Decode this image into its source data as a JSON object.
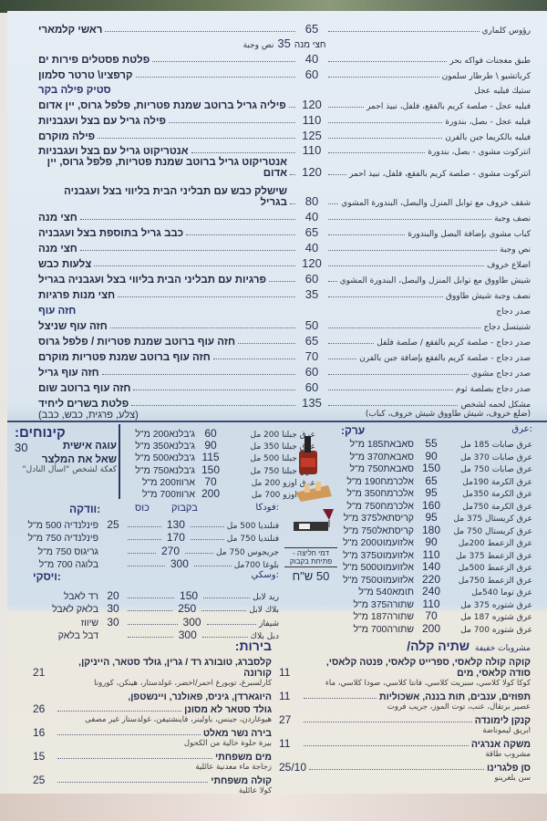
{
  "top_menu": {
    "block1": [
      {
        "he": "ראשי קלמארי",
        "price": "65",
        "ar": "رؤوس كلماري"
      },
      {
        "type": "half",
        "he": "חצי מנה",
        "price": "35",
        "ar": "نص وجبة"
      },
      {
        "he": "פלטת פסטלים פירות ים",
        "price": "40",
        "ar": "طبق معجنات فواكه بحر"
      },
      {
        "he": "קרפציו\\ טרטר סלמון",
        "price": "60",
        "ar": "كرباتشيو \\ طرطار سلمون"
      },
      {
        "type": "heading",
        "he": "סטיק פילה בקר",
        "ar": "ستيك فيليه عجل"
      },
      {
        "he": "פיליה גריל ברוטב שמנת פטריות, פלפל גרוס, יין אדום",
        "price": "120",
        "ar": "فيليه عجل - صلصة كريم بالفقع، فلفل، نبيذ احمر"
      },
      {
        "he": "פילה גריל עם בצל ועגבניות",
        "price": "110",
        "ar": "فيليه عجل - بصل، بندورة"
      },
      {
        "he": "פילה מוקרם",
        "price": "125",
        "ar": "فيليه بالكريما جبن بالفرن"
      },
      {
        "he": "אנטריקוט גריל עם בצל ועגבניות",
        "price": "110",
        "ar": "انتركوت مشوي - بصل، بندورة"
      },
      {
        "he": "אנטריקוט גריל ברוטב שמנת פטריות, פלפל גרוס, יין אדום",
        "price": "120",
        "ar": "انتركوت مشوي - صلصة كريم بالفقع، فلفل، نبيذ احمر"
      }
    ],
    "block2": [
      {
        "he": "שישלק כבש עם תבליני הבית בליווי בצל ועגבניה בגריל",
        "price": "80",
        "ar": "شقف خروف مع توابل المنزل والبصل، البندورة المشوي"
      },
      {
        "he": "חצי מנה",
        "price": "40",
        "ar": "نصف وجبة"
      },
      {
        "he": "כבב גריל בתוספת בצל ועגבניה",
        "price": "65",
        "ar": "كباب مشوي بإضافة البصل والبندورة"
      },
      {
        "he": "חצי מנה",
        "price": "40",
        "ar": "نص وجبة"
      },
      {
        "he": "צלעות כבש",
        "price": "120",
        "ar": "اضلاع خروف"
      },
      {
        "he": "פרגיות עם תבליני הבית בליווי בצל ועגבניה בגריל",
        "price": "60",
        "ar": "شيش طاووق مع توابل المنزل والبصل، البندورة المشوي"
      },
      {
        "he": "חצי מנות פרגיות",
        "price": "35",
        "ar": "نصف وجبة شيش طاووق"
      },
      {
        "type": "heading",
        "he": "חזה עוף",
        "ar": "صدر دجاج"
      },
      {
        "he": "חזה עוף שניצל",
        "price": "50",
        "ar": "شنيتسل دجاج"
      },
      {
        "he": "חזה עוף ברוטב שמנת פטריות / פלפל גרוס",
        "price": "65",
        "ar": "صدر دجاج - صلصة كريم بالفقع / صلصة فلفل"
      },
      {
        "he": "חזה עוף ברוטב שמנת פטריות מוקרם",
        "price": "70",
        "ar": "صدر دجاج - صلصة كريم بالفقع بإضافة جبن بالفرن"
      },
      {
        "he": "חזה עוף גריל",
        "price": "60",
        "ar": "صدر دجاج مشوي"
      },
      {
        "he": "חזה עוף ברוטב שום",
        "price": "60",
        "ar": "صدر دجاج بصلصة ثوم"
      },
      {
        "he": "פלטת בשרים ליחיד",
        "price": "135",
        "ar": "مشكل لحمه لشخص"
      },
      {
        "type": "sub",
        "he": "(צלע, פרגית, כבש, כבב)",
        "ar": "(ضلع خروف، شيش طاووق شيش خروف، كباب)"
      }
    ]
  },
  "desserts": {
    "title": "קינוחים:",
    "item": "עוגה אישית",
    "price": "30",
    "note": "שאל את המלצר",
    "note_ar": "كعكة لشخص \"اسأل النادل\""
  },
  "jabalna": [
    {
      "he": "ג'בלנא200 מ\"ל",
      "price": "60",
      "ar": "عرق جبلنا 200 مل"
    },
    {
      "he": "ג'בלנא350 מ\"ל",
      "price": "90",
      "ar": "عرق جبلنا 350 مل"
    },
    {
      "he": "ג'בלנא500 מ\"ל",
      "price": "115",
      "ar": "عرق جبلنا 500 مل"
    },
    {
      "he": "ג'בלנא750 מ\"ל",
      "price": "150",
      "ar": "عرق جبلنا 750 مل"
    },
    {
      "he": "ארווז200 מ\"ל",
      "price": "70",
      "ar": "عرق اوزو 200 مل"
    },
    {
      "he": "ארווז700 מ\"ל",
      "price": "200",
      "ar": "عرق اوزو 700 مل"
    }
  ],
  "vodka": {
    "title": "וודקה:",
    "glass": "כוס",
    "bottle": "בקבוק",
    "title_ar": "فودكا:",
    "items": [
      {
        "he": "פינלנדיה 500 מ\"ל",
        "glass": "25",
        "bottle": "130",
        "ar": "فنلنديا 500 مل"
      },
      {
        "he": "פינלנדיה 750 מ\"ל",
        "glass": "",
        "bottle": "170",
        "ar": "فنلنديا 750 مل"
      },
      {
        "he": "גריגוס 750 מ\"ל",
        "glass": "",
        "bottle": "270",
        "ar": "جريجوس 750 مل"
      },
      {
        "he": "בלוגה 700 מ\"ל",
        "glass": "",
        "bottle": "300",
        "ar": "بلوغا 700مل"
      }
    ]
  },
  "whisky": {
    "title": "ויסקי:",
    "title_ar": "وسكي:",
    "items": [
      {
        "he": "רד לאבל",
        "glass": "20",
        "bottle": "150",
        "ar": "ريد لابل"
      },
      {
        "he": "בלאק לאבל",
        "glass": "30",
        "bottle": "250",
        "ar": "بلاك لابل"
      },
      {
        "he": "שיווז",
        "glass": "30",
        "bottle": "300",
        "ar": "شيفاز"
      },
      {
        "he": "דבל בלאק",
        "glass": "",
        "bottle": "300",
        "ar": "دبل بلاك"
      }
    ]
  },
  "arak": {
    "title": "ערק:",
    "title_ar": "عرق:",
    "items": [
      {
        "he": "סאבאת185 מ\"ל",
        "price": "55",
        "ar": "عرق صابات 185 مل"
      },
      {
        "he": "סאבאת370 מ\"ל",
        "price": "90",
        "ar": "عرق صابات 370 مل"
      },
      {
        "he": "סאבאת750 מ\"ל",
        "price": "150",
        "ar": "عرق صابات 750 مل"
      },
      {
        "he": "אלכרמח190 מ\"ל",
        "price": "65",
        "ar": "عرق الكرمة 190مل"
      },
      {
        "he": "אלכרמח350 מ\"ל",
        "price": "95",
        "ar": "عرق الكرمة 350مل"
      },
      {
        "he": "אלכרמח750 מ\"ל",
        "price": "160",
        "ar": "عرق الكرمة 750مل"
      },
      {
        "he": "קריסתאל375 מ\"ל",
        "price": "95",
        "ar": "عرق كريستال 375 مل"
      },
      {
        "he": "קריסתאל750 מ\"ל",
        "price": "180",
        "ar": "عرق كريستال 750 مل"
      },
      {
        "he": "אלזועמוט200 מ\"ל",
        "price": "90",
        "ar": "عرق الزعمط 200مل"
      },
      {
        "he": "אלזועמוט375 מ\"ל",
        "price": "110",
        "ar": "عرق الزعمط 375 مل"
      },
      {
        "he": "אלזועמוט500 מ\"ל",
        "price": "140",
        "ar": "عرق الزعمط 500مل"
      },
      {
        "he": "אלזועמוט750 מ\"ל",
        "price": "220",
        "ar": "عرق الزعمط 750مل"
      },
      {
        "he": "תומא540 מ\"ל",
        "price": "240",
        "ar": "عرق توما 540مل"
      },
      {
        "he": "שתורה375 מ\"ל",
        "price": "110",
        "ar": "عرق شتوره 375 مل"
      },
      {
        "he": "שתורה187 מ\"ל",
        "price": "70",
        "ar": "عرق شتوره 187 مل"
      },
      {
        "he": "שתורה700 מ\"ל",
        "price": "200",
        "ar": "عرق شتوره 700 مل"
      }
    ]
  },
  "opening_fee": {
    "label": "דמי חליצה - פתיחת בקבוק",
    "price": "50 ש\"ח"
  },
  "soft_drinks": {
    "title": "שתיה קלה/",
    "title_ar": "مشروبات خفيفة",
    "items": [
      {
        "he": "קוקה קולה קלאסי, ספרייט קלאסי, פנטה קלאסי, סודה קלאסי, מים",
        "price": "11",
        "ar": "كوكا كولا كلاسي، سبريت كلاسي، فانتا كلاسي، صودا كلاسي، ماء"
      },
      {
        "he": "תפוזים, ענבים, תות בננה, אשכוליות",
        "price": "11",
        "ar": "عصير برتقال، عنب، توت الموز، جريب فروت"
      },
      {
        "he": "קנקן לימונדה",
        "price": "27",
        "ar": "ابريق ليموناضة"
      },
      {
        "he": "משקה אנרגיה",
        "price": "11",
        "ar": "مشروب طاقة"
      },
      {
        "he": "סן פלגרינו",
        "price": "25/10",
        "ar": "سن بلغرينو"
      }
    ]
  },
  "beers": {
    "title": "בירות:",
    "items": [
      {
        "he": "קלסברג, טובורג רד / גרין, גולד סטאר, הייניקן, קורונה",
        "price": "21",
        "ar": "كارلسبرغ، توبورغ احمر/اخضر، غولدستار، هينكن، كورونا"
      },
      {
        "he": "היוגארדן, גיניס, פאולנר, ויינשטפן,",
        "price": "",
        "ar": ""
      },
      {
        "he": "גולד סטאר לא מסונן",
        "price": "26",
        "ar": "هيوغاردن، جينس، باولينر، فاينشتيفن، غولدستار غير مصفى"
      },
      {
        "he": "בירה נשר מאלט",
        "price": "16",
        "ar": "بيرة حلوة خالية من الكحول"
      },
      {
        "he": "מים משפחתי",
        "price": "15",
        "ar": "زجاجة ماء معدنية عائلية"
      },
      {
        "he": "קולה משפחתי",
        "price": "25",
        "ar": "كولا عائلية"
      }
    ]
  }
}
